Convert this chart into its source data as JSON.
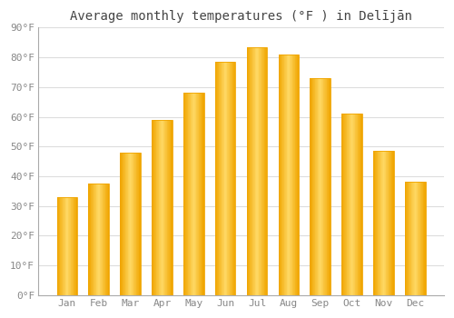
{
  "title": "Average monthly temperatures (°F ) in Delījān",
  "months": [
    "Jan",
    "Feb",
    "Mar",
    "Apr",
    "May",
    "Jun",
    "Jul",
    "Aug",
    "Sep",
    "Oct",
    "Nov",
    "Dec"
  ],
  "values": [
    33,
    37.5,
    48,
    59,
    68,
    78.5,
    83.5,
    81,
    73,
    61,
    48.5,
    38
  ],
  "bar_color_center": "#FFD966",
  "bar_color_edge": "#F0A500",
  "background_color": "#FFFFFF",
  "grid_color": "#DDDDDD",
  "text_color": "#888888",
  "title_color": "#444444",
  "axis_line_color": "#AAAAAA",
  "ylim": [
    0,
    90
  ],
  "yticks": [
    0,
    10,
    20,
    30,
    40,
    50,
    60,
    70,
    80,
    90
  ],
  "title_fontsize": 10,
  "tick_fontsize": 8,
  "figsize": [
    5.0,
    3.5
  ],
  "dpi": 100
}
